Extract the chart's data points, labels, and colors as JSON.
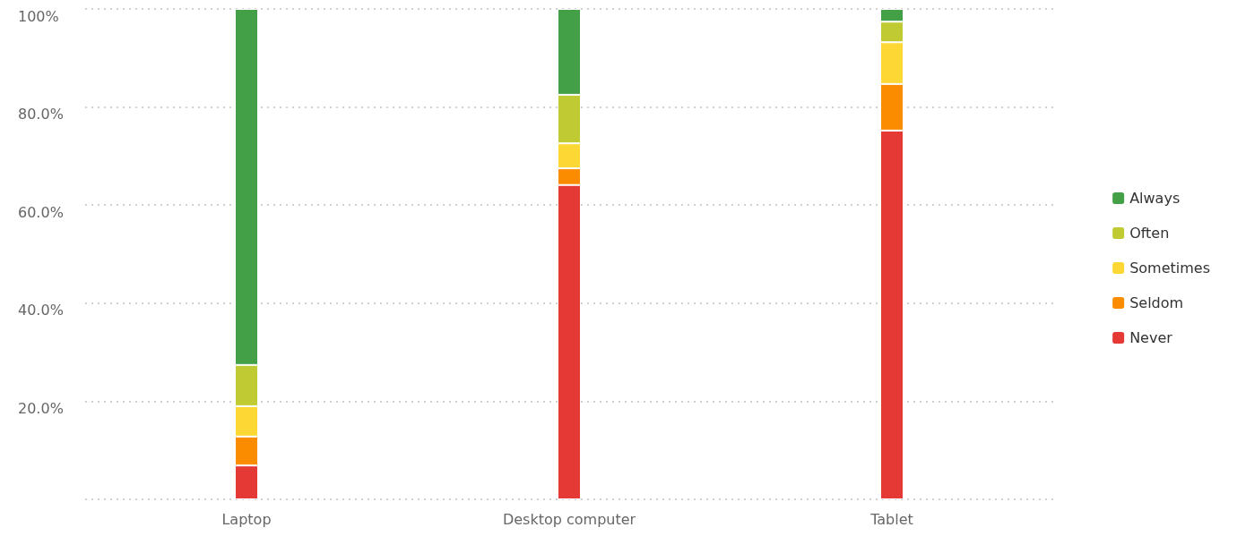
{
  "chart_data": {
    "type": "bar",
    "stacked": true,
    "categories": [
      "Laptop",
      "Desktop computer",
      "Tablet"
    ],
    "series": [
      {
        "name": "Never",
        "color": "#e53935",
        "values": [
          6.9,
          64.1,
          75.2
        ]
      },
      {
        "name": "Seldom",
        "color": "#fb8c00",
        "values": [
          5.9,
          3.4,
          9.5
        ]
      },
      {
        "name": "Sometimes",
        "color": "#fdd835",
        "values": [
          6.2,
          5.1,
          8.5
        ]
      },
      {
        "name": "Often",
        "color": "#c0ca33",
        "values": [
          8.4,
          9.9,
          4.2
        ]
      },
      {
        "name": "Always",
        "color": "#43a047",
        "values": [
          72.6,
          17.5,
          2.6
        ]
      }
    ],
    "ylim": [
      0,
      100
    ],
    "yticks": [
      {
        "value": 0,
        "label": null
      },
      {
        "value": 20,
        "label": "20.0%"
      },
      {
        "value": 40,
        "label": "40.0%"
      },
      {
        "value": 60,
        "label": "60.0%"
      },
      {
        "value": 80,
        "label": "80.0%"
      },
      {
        "value": 100,
        "label": "100%"
      }
    ],
    "grid": "y",
    "legend": "right"
  }
}
